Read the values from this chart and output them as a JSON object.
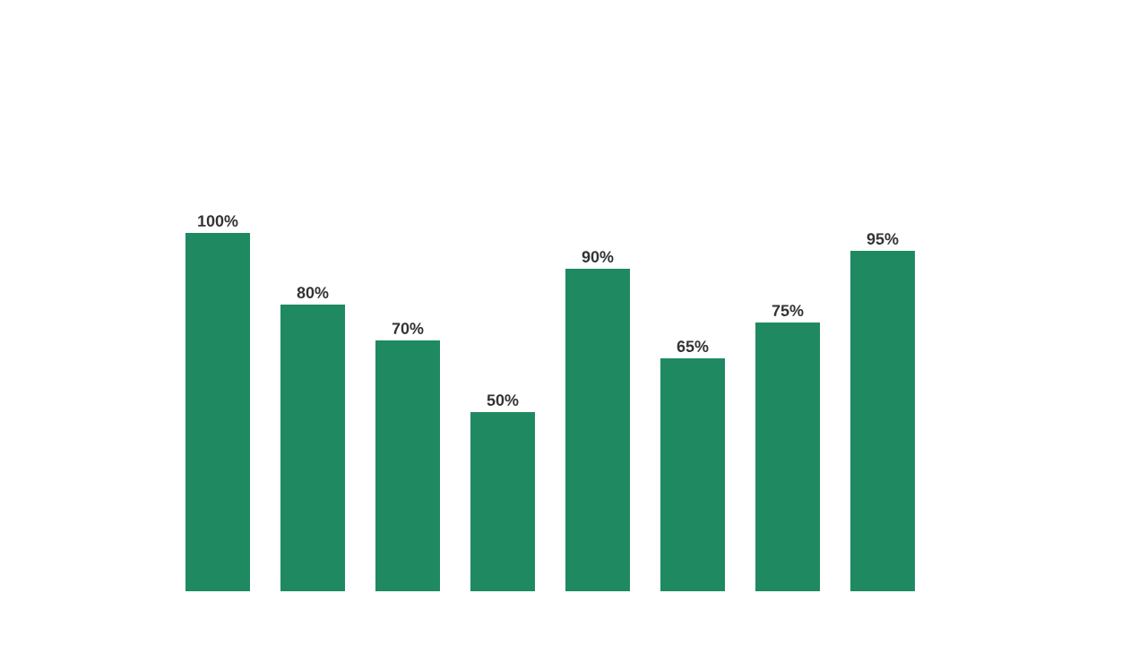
{
  "chart_data": {
    "type": "bar",
    "categories": [
      null,
      null,
      null,
      null,
      null,
      null,
      null,
      null
    ],
    "values": [
      100,
      80,
      70,
      50,
      90,
      65,
      75,
      95
    ],
    "value_labels": [
      "100%",
      "80%",
      "70%",
      "50%",
      "90%",
      "65%",
      "75%",
      "95%"
    ],
    "color": "#1f8a61"
  }
}
